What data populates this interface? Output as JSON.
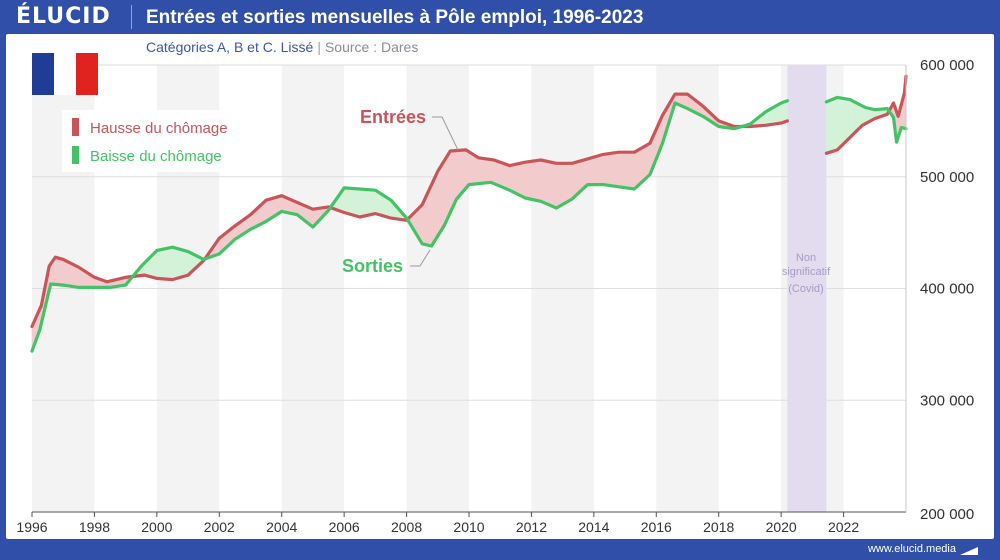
{
  "header": {
    "logo": "ÉLUCID",
    "title": "Entrées et sorties mensuelles à Pôle emploi, 1996-2023",
    "subtitle": "Catégories A, B et C. Lissé",
    "source": "Source : Dares"
  },
  "footer": {
    "url": "www.elucid.media"
  },
  "colors": {
    "entrees": "#c9555a",
    "sorties": "#44c266",
    "hausse_fill": "#f2cccc",
    "baisse_fill": "#d3f2d9",
    "covid_band": "#e3dcef",
    "brand": "#2f4fa8"
  },
  "flag": "france-flag-icon",
  "annotations": {
    "entrees_label": "Entrées",
    "sorties_label": "Sorties",
    "covid_line1": "Non",
    "covid_line2": "significatif",
    "covid_line3": "(Covid)"
  },
  "chart_data": {
    "type": "line",
    "title": "Entrées et sorties mensuelles à Pôle emploi, 1996-2023",
    "subtitle": "Catégories A, B et C. Lissé",
    "x_range": [
      1996,
      2024
    ],
    "ylim": [
      200000,
      600000
    ],
    "y_ticks": [
      200000,
      300000,
      400000,
      500000,
      600000
    ],
    "y_tick_labels": [
      "200 000",
      "300 000",
      "400 000",
      "500 000",
      "600 000"
    ],
    "x_ticks": [
      1996,
      1998,
      2000,
      2002,
      2004,
      2006,
      2008,
      2010,
      2012,
      2014,
      2016,
      2018,
      2020,
      2022
    ],
    "x_tick_labels": [
      "1996",
      "1998",
      "2000",
      "2002",
      "2004",
      "2006",
      "2008",
      "2010",
      "2012",
      "2014",
      "2016",
      "2018",
      "2020",
      "2022"
    ],
    "legend": {
      "placement": "top-left",
      "items": [
        {
          "label": "Hausse du chômage",
          "color": "#c9555a"
        },
        {
          "label": "Baisse du chômage",
          "color": "#44c266"
        }
      ]
    },
    "grid": true,
    "covid_band": {
      "start": 2020.2,
      "end": 2021.45,
      "label": "Non significatif (Covid)"
    },
    "series": [
      {
        "name": "Entrées",
        "color": "#c9555a",
        "points": [
          [
            1996.0,
            366000
          ],
          [
            1996.3,
            385000
          ],
          [
            1996.55,
            420000
          ],
          [
            1996.75,
            428000
          ],
          [
            1997.0,
            426000
          ],
          [
            1997.5,
            419000
          ],
          [
            1998.0,
            410000
          ],
          [
            1998.4,
            406000
          ],
          [
            1999.0,
            410000
          ],
          [
            1999.6,
            412000
          ],
          [
            2000.0,
            409000
          ],
          [
            2000.5,
            408000
          ],
          [
            2001.0,
            412000
          ],
          [
            2001.5,
            425000
          ],
          [
            2002.0,
            445000
          ],
          [
            2002.5,
            456000
          ],
          [
            2003.0,
            466000
          ],
          [
            2003.5,
            479000
          ],
          [
            2004.0,
            483000
          ],
          [
            2004.5,
            477000
          ],
          [
            2005.0,
            471000
          ],
          [
            2005.5,
            473000
          ],
          [
            2006.0,
            468000
          ],
          [
            2006.5,
            464000
          ],
          [
            2007.0,
            467000
          ],
          [
            2007.5,
            463000
          ],
          [
            2008.0,
            461000
          ],
          [
            2008.5,
            475000
          ],
          [
            2009.0,
            505000
          ],
          [
            2009.4,
            523000
          ],
          [
            2009.9,
            524000
          ],
          [
            2010.3,
            517000
          ],
          [
            2010.8,
            515000
          ],
          [
            2011.3,
            510000
          ],
          [
            2011.8,
            513000
          ],
          [
            2012.3,
            515000
          ],
          [
            2012.8,
            512000
          ],
          [
            2013.3,
            512000
          ],
          [
            2013.8,
            516000
          ],
          [
            2014.3,
            520000
          ],
          [
            2014.8,
            522000
          ],
          [
            2015.3,
            522000
          ],
          [
            2015.8,
            530000
          ],
          [
            2016.2,
            555000
          ],
          [
            2016.6,
            574000
          ],
          [
            2017.0,
            574000
          ],
          [
            2017.5,
            563000
          ],
          [
            2018.0,
            550000
          ],
          [
            2018.5,
            545000
          ],
          [
            2019.0,
            545000
          ],
          [
            2019.5,
            546000
          ],
          [
            2020.0,
            548000
          ],
          [
            2020.2,
            550000
          ],
          [
            2021.45,
            521000
          ],
          [
            2021.8,
            524000
          ],
          [
            2022.2,
            535000
          ],
          [
            2022.6,
            546000
          ],
          [
            2023.0,
            552000
          ],
          [
            2023.4,
            556000
          ],
          [
            2023.6,
            566000
          ],
          [
            2023.75,
            554000
          ],
          [
            2023.95,
            575000
          ],
          [
            2024.0,
            590000
          ]
        ]
      },
      {
        "name": "Sorties",
        "color": "#44c266",
        "points": [
          [
            1996.0,
            344000
          ],
          [
            1996.25,
            363000
          ],
          [
            1996.6,
            404000
          ],
          [
            1997.0,
            403000
          ],
          [
            1997.5,
            401000
          ],
          [
            1998.0,
            401000
          ],
          [
            1998.5,
            401000
          ],
          [
            1999.0,
            403000
          ],
          [
            1999.5,
            420000
          ],
          [
            2000.0,
            434000
          ],
          [
            2000.5,
            437000
          ],
          [
            2001.0,
            433000
          ],
          [
            2001.5,
            426000
          ],
          [
            2002.0,
            431000
          ],
          [
            2002.5,
            444000
          ],
          [
            2003.0,
            453000
          ],
          [
            2003.5,
            460000
          ],
          [
            2004.0,
            469000
          ],
          [
            2004.5,
            466000
          ],
          [
            2005.0,
            455000
          ],
          [
            2005.5,
            470000
          ],
          [
            2006.0,
            490000
          ],
          [
            2006.5,
            489000
          ],
          [
            2007.0,
            488000
          ],
          [
            2007.5,
            479000
          ],
          [
            2008.0,
            463000
          ],
          [
            2008.5,
            440000
          ],
          [
            2008.8,
            438000
          ],
          [
            2009.2,
            456000
          ],
          [
            2009.6,
            480000
          ],
          [
            2010.0,
            493000
          ],
          [
            2010.7,
            495000
          ],
          [
            2011.3,
            488000
          ],
          [
            2011.8,
            481000
          ],
          [
            2012.3,
            478000
          ],
          [
            2012.8,
            472000
          ],
          [
            2013.3,
            480000
          ],
          [
            2013.8,
            493000
          ],
          [
            2014.3,
            493000
          ],
          [
            2014.8,
            491000
          ],
          [
            2015.3,
            489000
          ],
          [
            2015.8,
            502000
          ],
          [
            2016.2,
            530000
          ],
          [
            2016.6,
            566000
          ],
          [
            2017.0,
            561000
          ],
          [
            2017.5,
            554000
          ],
          [
            2018.0,
            545000
          ],
          [
            2018.5,
            543000
          ],
          [
            2019.0,
            547000
          ],
          [
            2019.5,
            558000
          ],
          [
            2020.0,
            566000
          ],
          [
            2020.2,
            568000
          ],
          [
            2021.45,
            567000
          ],
          [
            2021.8,
            571000
          ],
          [
            2022.2,
            569000
          ],
          [
            2022.7,
            562000
          ],
          [
            2023.0,
            560000
          ],
          [
            2023.4,
            561000
          ],
          [
            2023.6,
            553000
          ],
          [
            2023.7,
            531000
          ],
          [
            2023.85,
            544000
          ],
          [
            2024.0,
            543000
          ]
        ]
      }
    ]
  }
}
